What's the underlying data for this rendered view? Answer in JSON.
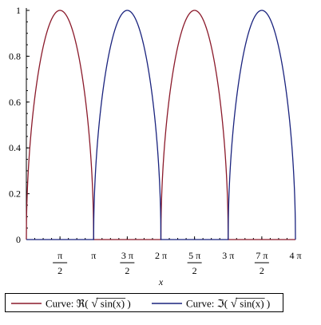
{
  "chart_data": {
    "type": "line",
    "title": "",
    "xlabel": "x",
    "ylabel": "",
    "xlim": [
      0,
      12.566370614359172
    ],
    "ylim": [
      0,
      1
    ],
    "y_ticks": [
      {
        "value": 0,
        "label": "0"
      },
      {
        "value": 0.2,
        "label": "0.2"
      },
      {
        "value": 0.4,
        "label": "0.4"
      },
      {
        "value": 0.6,
        "label": "0.6"
      },
      {
        "value": 0.8,
        "label": "0.8"
      },
      {
        "value": 1,
        "label": "1"
      }
    ],
    "x_ticks": [
      {
        "value": 1.5707963267948966,
        "numerator": "π",
        "denominator": "2"
      },
      {
        "value": 3.141592653589793,
        "label": "π"
      },
      {
        "value": 4.71238898038469,
        "numerator": "3 π",
        "denominator": "2"
      },
      {
        "value": 6.283185307179586,
        "label": "2 π"
      },
      {
        "value": 7.853981633974483,
        "numerator": "5 π",
        "denominator": "2"
      },
      {
        "value": 9.42477796076938,
        "label": "3 π"
      },
      {
        "value": 10.995574287564276,
        "numerator": "7 π",
        "denominator": "2"
      },
      {
        "value": 12.566370614359172,
        "label": "4 π"
      }
    ],
    "series": [
      {
        "name": "Curve: ℜ(√ sin(x) )",
        "legend_prefix": "Curve: ℜ(",
        "legend_arg": "sin(x)",
        "legend_suffix": ")",
        "function": "Re(sqrt(sin(x)))",
        "color": "#8b1a2b"
      },
      {
        "name": "Curve: ℑ(√ sin(x) )",
        "legend_prefix": "Curve: ℑ(",
        "legend_arg": "sin(x)",
        "legend_suffix": ")",
        "function": "Im(sqrt(sin(x)))",
        "color": "#1a237e"
      }
    ],
    "legend_position": "bottom",
    "grid": false
  }
}
